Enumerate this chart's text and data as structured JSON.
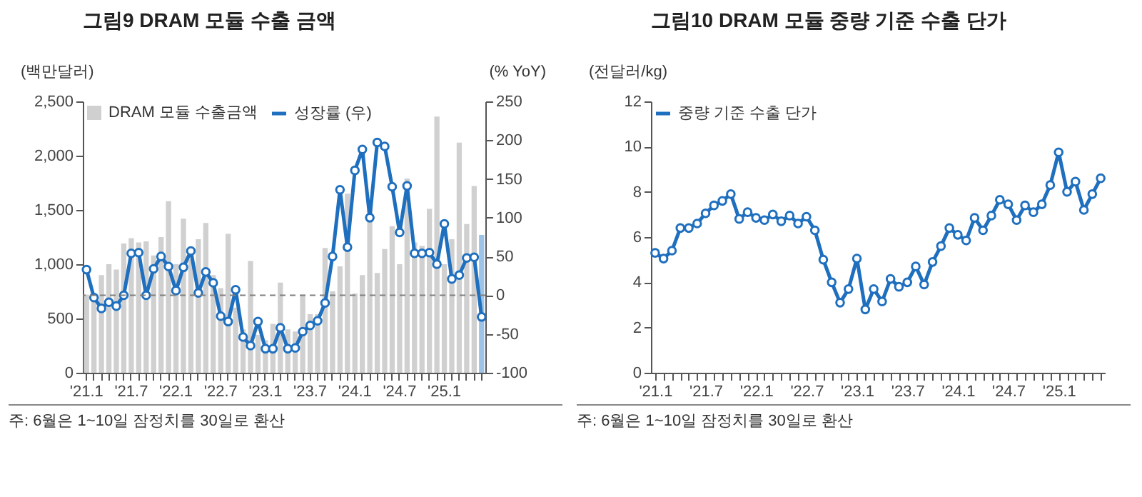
{
  "chart_data": [
    {
      "type": "bar",
      "title": "그림9  DRAM 모듈 수출 금액",
      "ylabel": "(백만달러)",
      "y2label": "(% YoY)",
      "categories": [
        "'21.1",
        null,
        null,
        null,
        null,
        null,
        "'21.7",
        null,
        null,
        null,
        null,
        null,
        "'22.1",
        null,
        null,
        null,
        null,
        null,
        "'22.7",
        null,
        null,
        null,
        null,
        null,
        "'23.1",
        null,
        null,
        null,
        null,
        null,
        "'23.7",
        null,
        null,
        null,
        null,
        null,
        "'24.1",
        null,
        null,
        null,
        null,
        null,
        "'24.7",
        null,
        null,
        null,
        null,
        null,
        "'25.1",
        null,
        null,
        null,
        null,
        null
      ],
      "series": [
        {
          "name": "DRAM 모듈 수출금액",
          "type": "bar",
          "color": "#d0d0d0",
          "colors": [
            "#d0d0d0",
            "#d0d0d0",
            "#d0d0d0",
            "#d0d0d0",
            "#d0d0d0",
            "#d0d0d0",
            "#d0d0d0",
            "#d0d0d0",
            "#d0d0d0",
            "#d0d0d0",
            "#d0d0d0",
            "#d0d0d0",
            "#d0d0d0",
            "#d0d0d0",
            "#d0d0d0",
            "#d0d0d0",
            "#d0d0d0",
            "#d0d0d0",
            "#d0d0d0",
            "#d0d0d0",
            "#d0d0d0",
            "#d0d0d0",
            "#d0d0d0",
            "#d0d0d0",
            "#d0d0d0",
            "#d0d0d0",
            "#d0d0d0",
            "#d0d0d0",
            "#d0d0d0",
            "#d0d0d0",
            "#d0d0d0",
            "#d0d0d0",
            "#d0d0d0",
            "#d0d0d0",
            "#d0d0d0",
            "#d0d0d0",
            "#d0d0d0",
            "#d0d0d0",
            "#d0d0d0",
            "#d0d0d0",
            "#d0d0d0",
            "#d0d0d0",
            "#d0d0d0",
            "#d0d0d0",
            "#d0d0d0",
            "#d0d0d0",
            "#d0d0d0",
            "#d0d0d0",
            "#d0d0d0",
            "#d0d0d0",
            "#d0d0d0",
            "#d0d0d0",
            "#d0d0d0",
            "#9dc3e6"
          ],
          "values": [
            720,
            680,
            900,
            1000,
            950,
            1190,
            1240,
            1200,
            1210,
            1080,
            1250,
            1580,
            1000,
            1420,
            1050,
            1230,
            1380,
            900,
            780,
            1280,
            600,
            400,
            1030,
            350,
            300,
            450,
            830,
            400,
            380,
            720,
            540,
            540,
            1150,
            750,
            980,
            1650,
            730,
            900,
            1500,
            920,
            1140,
            1350,
            1000,
            1790,
            1200,
            1170,
            1510,
            2360,
            1000,
            1230,
            2120,
            1370,
            1720,
            1270
          ]
        },
        {
          "name": "성장률 (우)",
          "type": "line",
          "axis": "y2",
          "color": "#1f6fbf",
          "values": [
            33,
            -3,
            -17,
            -9,
            -14,
            0,
            54,
            55,
            0,
            34,
            50,
            37,
            6,
            36,
            57,
            3,
            30,
            16,
            -27,
            -34,
            7,
            -54,
            -65,
            -34,
            -69,
            -69,
            -42,
            -69,
            -68,
            -47,
            -39,
            -33,
            -10,
            50,
            136,
            62,
            161,
            188,
            100,
            197,
            192,
            140,
            81,
            141,
            54,
            54,
            55,
            40,
            92,
            21,
            26,
            48,
            49,
            -28
          ]
        }
      ],
      "ylim": [
        0,
        2500
      ],
      "yticks": [
        0,
        {
          "value": 500,
          "label": "500"
        },
        {
          "value": 1000,
          "label": "1,000"
        },
        {
          "value": 1500,
          "label": "1,500"
        },
        {
          "value": 2000,
          "label": "2,000"
        },
        {
          "value": 2500,
          "label": "2,500"
        }
      ],
      "y2lim": [
        -100,
        250
      ],
      "y2ticks": [
        -100,
        -50,
        0,
        50,
        100,
        150,
        200,
        250
      ],
      "ref_lines": [
        {
          "axis": "y2",
          "value": 0,
          "color": "#7f7f7f",
          "line_style": "dashed"
        }
      ],
      "legend": "top left",
      "marker": "circle",
      "line_style": "solid",
      "annotations": [
        "주: 6월은 1~10일 잠정치를 30일로 환산"
      ]
    },
    {
      "type": "line",
      "title": "그림10  DRAM 모듈 중량 기준 수출 단가",
      "ylabel": "(전달러/kg)",
      "categories": [
        "'21.1",
        null,
        null,
        null,
        null,
        null,
        "'21.7",
        null,
        null,
        null,
        null,
        null,
        "'22.1",
        null,
        null,
        null,
        null,
        null,
        "'22.7",
        null,
        null,
        null,
        null,
        null,
        "'23.1",
        null,
        null,
        null,
        null,
        null,
        "'23.7",
        null,
        null,
        null,
        null,
        null,
        "'24.1",
        null,
        null,
        null,
        null,
        null,
        "'24.7",
        null,
        null,
        null,
        null,
        null,
        "'25.1",
        null,
        null,
        null,
        null,
        null
      ],
      "series": [
        {
          "name": "중량 기준 수출 단가",
          "color": "#1f6fbf",
          "values": [
            5.3,
            5.05,
            5.4,
            6.4,
            6.4,
            6.6,
            7.05,
            7.4,
            7.6,
            7.9,
            6.8,
            7.1,
            6.85,
            6.75,
            7.0,
            6.7,
            6.95,
            6.6,
            6.9,
            6.3,
            5.0,
            4.0,
            3.1,
            3.7,
            5.05,
            2.8,
            3.7,
            3.15,
            4.15,
            3.8,
            4.0,
            4.7,
            3.9,
            4.9,
            5.6,
            6.4,
            6.1,
            5.85,
            6.85,
            6.3,
            6.95,
            7.65,
            7.45,
            6.75,
            7.4,
            7.1,
            7.45,
            8.3,
            9.75,
            8.0,
            8.45,
            7.2,
            7.9,
            8.6
          ]
        }
      ],
      "ylim": [
        0,
        12
      ],
      "yticks": [
        0,
        2,
        4,
        6,
        8,
        10,
        12
      ],
      "legend": "top left",
      "marker": "circle",
      "line_style": "solid",
      "annotations": [
        "주: 6월은 1~10일 잠정치를 30일로 환산"
      ]
    }
  ]
}
